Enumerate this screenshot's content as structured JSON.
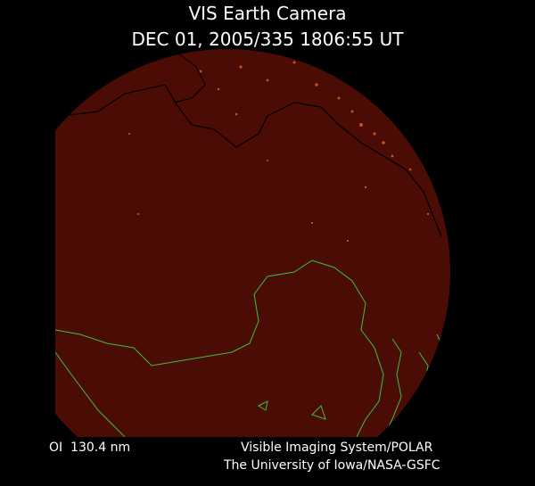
{
  "header": {
    "title": "VIS Earth Camera",
    "timestamp": "DEC 01, 2005/335 1806:55 UT"
  },
  "footer": {
    "filter": "OI  130.4 nm",
    "instrument": "Visible Imaging System/POLAR",
    "institution": "The University of Iowa/NASA-GSFC"
  }
}
